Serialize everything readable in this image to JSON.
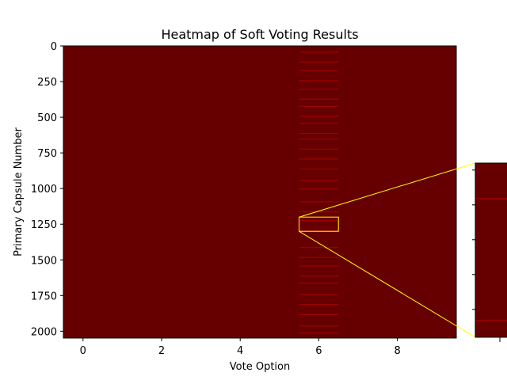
{
  "chart_data": {
    "type": "heatmap",
    "title": "Heatmap of Soft Voting Results",
    "xlabel": "Vote Option",
    "ylabel": "Primary Capsule Number",
    "x_ticks": [
      0,
      2,
      4,
      6,
      8
    ],
    "y_ticks": [
      0,
      250,
      500,
      750,
      1000,
      1250,
      1500,
      1750,
      2000
    ],
    "xlim": [
      -0.5,
      9.5
    ],
    "ylim": [
      2048,
      0
    ],
    "n_rows": 2048,
    "n_cols": 10,
    "base_color": "#660000",
    "highlight_color": "#a80000",
    "active_column": 6,
    "highlight_rows": [
      40,
      110,
      170,
      240,
      300,
      370,
      420,
      490,
      540,
      610,
      650,
      720,
      790,
      860,
      940,
      1000,
      1090,
      1160,
      1220,
      1290,
      1410,
      1480,
      1540,
      1610,
      1660,
      1740,
      1810,
      1880,
      1960,
      2010
    ],
    "zoom_box": {
      "x_range": [
        5.5,
        6.5
      ],
      "y_range": [
        1200,
        1300
      ],
      "color": "#ffff00"
    },
    "inset_tick_count": 5
  }
}
